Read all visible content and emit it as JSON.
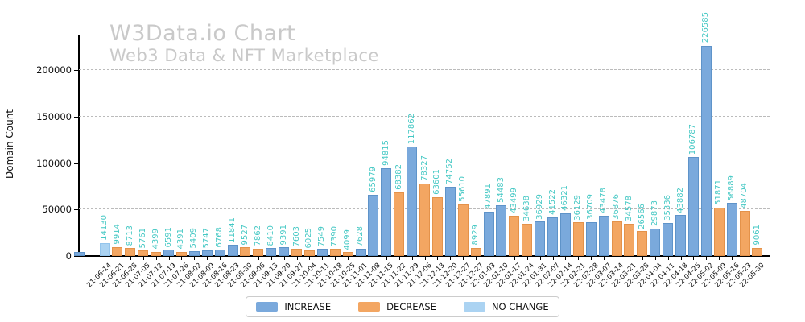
{
  "title": "W3Data.io Chart",
  "subtitle": "Web3 Data & NFT Marketplace",
  "ylabel": "Domain Count",
  "legend": [
    {
      "label": "INCREASE",
      "color": "#7aa9dc",
      "edge": "#5e93c9"
    },
    {
      "label": "DECREASE",
      "color": "#f3a662",
      "edge": "#e4924a"
    },
    {
      "label": "NO CHANGE",
      "color": "#abd3f2",
      "edge": "#93c4ec"
    }
  ],
  "colors": {
    "value_label": "#45c8c4",
    "watermark": "#c9c9c9",
    "gridline": "#bbbbbb",
    "axis": "#000000"
  },
  "chart_data": {
    "type": "bar",
    "title": "W3Data.io Chart",
    "subtitle": "Web3 Data & NFT Marketplace",
    "xlabel": "",
    "ylabel": "Domain Count",
    "ylim": [
      0,
      238000
    ],
    "yticks": [
      0,
      50000,
      100000,
      150000,
      200000
    ],
    "grid": "horizontal-dashed",
    "legend_position": "bottom-center",
    "bar_label_rotation": 90,
    "xtick_rotation": 45,
    "clipped_edge_bar": {
      "approx_value": 4300,
      "change": "increase",
      "label_visible": false
    },
    "points": [
      {
        "date": "21-06-14",
        "value": 14130,
        "change": "nochange"
      },
      {
        "date": "21-06-21",
        "value": 9914,
        "change": "decrease"
      },
      {
        "date": "21-06-28",
        "value": 8713,
        "change": "decrease"
      },
      {
        "date": "21-07-05",
        "value": 5761,
        "change": "decrease"
      },
      {
        "date": "21-07-12",
        "value": 4399,
        "change": "decrease"
      },
      {
        "date": "21-07-19",
        "value": 6591,
        "change": "increase"
      },
      {
        "date": "21-07-26",
        "value": 4391,
        "change": "decrease"
      },
      {
        "date": "21-08-02",
        "value": 5409,
        "change": "increase"
      },
      {
        "date": "21-08-09",
        "value": 5747,
        "change": "increase"
      },
      {
        "date": "21-08-16",
        "value": 6768,
        "change": "increase"
      },
      {
        "date": "21-08-23",
        "value": 11841,
        "change": "increase"
      },
      {
        "date": "21-08-30",
        "value": 9527,
        "change": "decrease"
      },
      {
        "date": "21-09-06",
        "value": 7862,
        "change": "decrease"
      },
      {
        "date": "21-09-13",
        "value": 8410,
        "change": "increase"
      },
      {
        "date": "21-09-20",
        "value": 9391,
        "change": "increase"
      },
      {
        "date": "21-09-27",
        "value": 7603,
        "change": "decrease"
      },
      {
        "date": "21-10-04",
        "value": 6025,
        "change": "decrease"
      },
      {
        "date": "21-10-11",
        "value": 7549,
        "change": "increase"
      },
      {
        "date": "21-10-18",
        "value": 7390,
        "change": "decrease"
      },
      {
        "date": "21-10-25",
        "value": 4099,
        "change": "decrease"
      },
      {
        "date": "21-11-01",
        "value": 7628,
        "change": "increase"
      },
      {
        "date": "21-11-08",
        "value": 65979,
        "change": "increase"
      },
      {
        "date": "21-11-15",
        "value": 94815,
        "change": "increase"
      },
      {
        "date": "21-11-22",
        "value": 68382,
        "change": "decrease"
      },
      {
        "date": "21-11-29",
        "value": 117862,
        "change": "increase"
      },
      {
        "date": "21-12-06",
        "value": 78327,
        "change": "decrease"
      },
      {
        "date": "21-12-13",
        "value": 63601,
        "change": "decrease"
      },
      {
        "date": "21-12-20",
        "value": 74752,
        "change": "increase"
      },
      {
        "date": "21-12-27",
        "value": 55610,
        "change": "decrease"
      },
      {
        "date": "21-12-27",
        "value": 8929,
        "change": "decrease"
      },
      {
        "date": "22-01-03",
        "value": 47891,
        "change": "increase"
      },
      {
        "date": "22-01-10",
        "value": 54483,
        "change": "increase"
      },
      {
        "date": "22-01-17",
        "value": 43499,
        "change": "decrease"
      },
      {
        "date": "22-01-24",
        "value": 34638,
        "change": "decrease"
      },
      {
        "date": "22-01-31",
        "value": 36929,
        "change": "increase"
      },
      {
        "date": "22-02-07",
        "value": 41522,
        "change": "increase"
      },
      {
        "date": "22-02-14",
        "value": 46321,
        "change": "increase"
      },
      {
        "date": "22-02-21",
        "value": 36129,
        "change": "decrease"
      },
      {
        "date": "22-02-28",
        "value": 36709,
        "change": "increase"
      },
      {
        "date": "22-03-07",
        "value": 43478,
        "change": "increase"
      },
      {
        "date": "22-03-14",
        "value": 36876,
        "change": "decrease"
      },
      {
        "date": "22-03-21",
        "value": 34578,
        "change": "decrease"
      },
      {
        "date": "22-03-28",
        "value": 26566,
        "change": "decrease"
      },
      {
        "date": "22-04-04",
        "value": 29873,
        "change": "increase"
      },
      {
        "date": "22-04-11",
        "value": 35336,
        "change": "increase"
      },
      {
        "date": "22-04-18",
        "value": 43882,
        "change": "increase"
      },
      {
        "date": "22-04-25",
        "value": 106787,
        "change": "increase"
      },
      {
        "date": "22-05-02",
        "value": 226585,
        "change": "increase"
      },
      {
        "date": "22-05-09",
        "value": 51871,
        "change": "decrease"
      },
      {
        "date": "22-05-16",
        "value": 56889,
        "change": "increase"
      },
      {
        "date": "22-05-23",
        "value": 48704,
        "change": "decrease"
      },
      {
        "date": "22-05-30",
        "value": 9061,
        "change": "decrease"
      }
    ]
  }
}
